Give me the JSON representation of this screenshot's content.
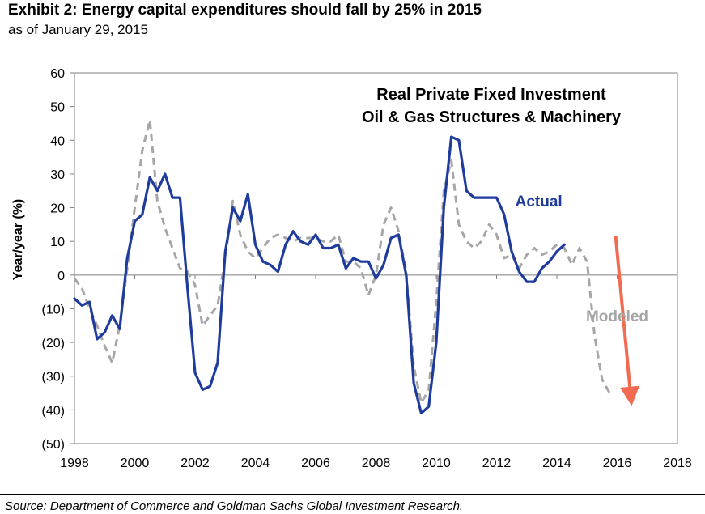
{
  "header": {
    "title": "Exhibit 2: Energy capital expenditures should fall by 25% in 2015",
    "subtitle": "as of January 29, 2015"
  },
  "source": "Source: Department of Commerce and Goldman Sachs Global Investment Research.",
  "colors": {
    "actual": "#1f3c9c",
    "modeled": "#a6a6a6",
    "arrow": "#f26a50",
    "axis": "#7f7f7f"
  },
  "chart_data": {
    "type": "line",
    "title": [
      "Real Private Fixed Investment",
      "Oil & Gas Structures & Machinery"
    ],
    "ylabel": "Year/year (%)",
    "xlim": [
      1998,
      2018
    ],
    "ylim": [
      -50,
      60
    ],
    "x_ticks": [
      "1998",
      "2000",
      "2002",
      "2004",
      "2006",
      "2008",
      "2010",
      "2012",
      "2014",
      "2016",
      "2018"
    ],
    "y_ticks": [
      "60",
      "50",
      "40",
      "30",
      "20",
      "10",
      "0",
      "(10)",
      "(20)",
      "(30)",
      "(40)",
      "(50)"
    ],
    "grid": false,
    "series": [
      {
        "name": "Actual",
        "style": "solid",
        "x": [
          1998.0,
          1998.25,
          1998.5,
          1998.75,
          1999.0,
          1999.25,
          1999.5,
          1999.75,
          2000.0,
          2000.25,
          2000.5,
          2000.75,
          2001.0,
          2001.25,
          2001.5,
          2001.75,
          2002.0,
          2002.25,
          2002.5,
          2002.75,
          2003.0,
          2003.25,
          2003.5,
          2003.75,
          2004.0,
          2004.25,
          2004.5,
          2004.75,
          2005.0,
          2005.25,
          2005.5,
          2005.75,
          2006.0,
          2006.25,
          2006.5,
          2006.75,
          2007.0,
          2007.25,
          2007.5,
          2007.75,
          2008.0,
          2008.25,
          2008.5,
          2008.75,
          2009.0,
          2009.25,
          2009.5,
          2009.75,
          2010.0,
          2010.25,
          2010.5,
          2010.75,
          2011.0,
          2011.25,
          2011.5,
          2011.75,
          2012.0,
          2012.25,
          2012.5,
          2012.75,
          2013.0,
          2013.25,
          2013.5,
          2013.75,
          2014.0,
          2014.25
        ],
        "values": [
          -7,
          -9,
          -8,
          -19,
          -17,
          -12,
          -16,
          5,
          16,
          18,
          29,
          25,
          30,
          23,
          23,
          -4,
          -29,
          -34,
          -33,
          -26,
          7,
          20,
          16,
          24,
          9,
          4,
          3,
          1,
          9,
          13,
          10,
          9,
          12,
          8,
          8,
          9,
          2,
          5,
          4,
          4,
          -1,
          3,
          11,
          12,
          0,
          -32,
          -41,
          -39,
          -20,
          20,
          41,
          40,
          25,
          23,
          23,
          23,
          23,
          18,
          7,
          1,
          -2,
          -2,
          2,
          4,
          7,
          9
        ]
      },
      {
        "name": "Modeled",
        "style": "dashed",
        "x": [
          1998.0,
          1998.25,
          1998.5,
          1998.75,
          1999.0,
          1999.25,
          1999.5,
          1999.75,
          2000.0,
          2000.25,
          2000.5,
          2000.75,
          2001.0,
          2001.25,
          2001.5,
          2001.75,
          2002.0,
          2002.25,
          2002.5,
          2002.75,
          2003.0,
          2003.25,
          2003.5,
          2003.75,
          2004.0,
          2004.25,
          2004.5,
          2004.75,
          2005.0,
          2005.25,
          2005.5,
          2005.75,
          2006.0,
          2006.25,
          2006.5,
          2006.75,
          2007.0,
          2007.25,
          2007.5,
          2007.75,
          2008.0,
          2008.25,
          2008.5,
          2008.75,
          2009.0,
          2009.25,
          2009.5,
          2009.75,
          2010.0,
          2010.25,
          2010.5,
          2010.75,
          2011.0,
          2011.25,
          2011.5,
          2011.75,
          2012.0,
          2012.25,
          2012.5,
          2012.75,
          2013.0,
          2013.25,
          2013.5,
          2013.75,
          2014.0,
          2014.25,
          2014.5,
          2014.75,
          2015.0,
          2015.25,
          2015.5,
          2015.75
        ],
        "values": [
          -1,
          -4,
          -10,
          -15,
          -21,
          -26,
          -15,
          2,
          20,
          37,
          46,
          22,
          14,
          8,
          2,
          1,
          -3,
          -15,
          -12,
          -9,
          5,
          22,
          12,
          7,
          5,
          8,
          11,
          12,
          11,
          10,
          11,
          11,
          11,
          10,
          10,
          12,
          4,
          4,
          2,
          -6,
          0,
          15,
          20,
          13,
          1,
          -27,
          -38,
          -34,
          -8,
          25,
          34,
          15,
          10,
          8,
          10,
          15,
          12,
          5,
          6,
          2,
          6,
          8,
          6,
          7,
          9,
          8,
          3,
          8,
          4,
          -18,
          -31,
          -35
        ]
      }
    ],
    "annotations": [
      {
        "text": "Actual",
        "x": 2013.4,
        "y": 22,
        "series": "Actual"
      },
      {
        "text": "Modeled",
        "x": 2016.0,
        "y": -12,
        "series": "Modeled"
      }
    ],
    "arrow": {
      "from": [
        2015.95,
        11.5
      ],
      "to": [
        2016.45,
        -36
      ]
    }
  }
}
